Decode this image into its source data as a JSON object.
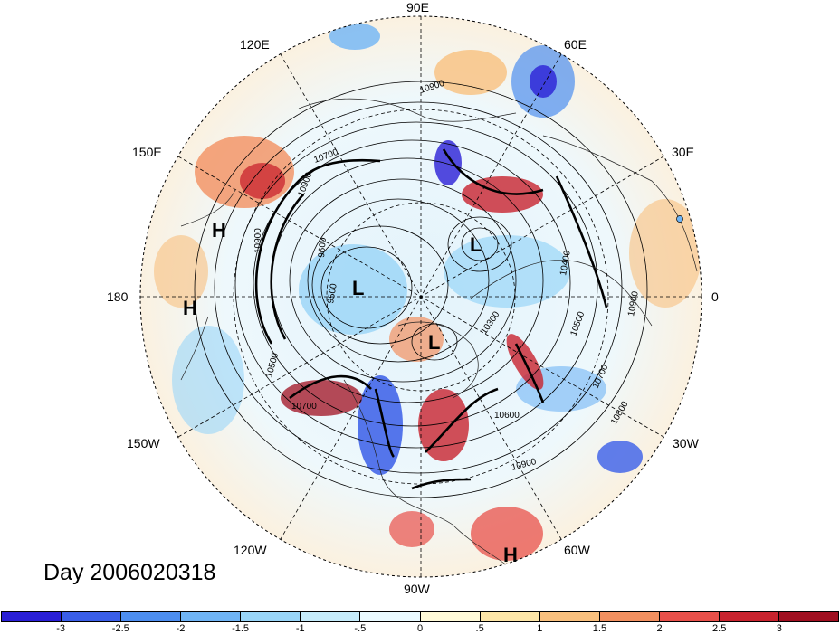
{
  "title": "Day 2006020318",
  "longitude_labels": [
    "90E",
    "60E",
    "30E",
    "0",
    "30W",
    "60W",
    "90W",
    "120W",
    "150W",
    "180",
    "150E",
    "120E"
  ],
  "pressure_centers": [
    "H",
    "H",
    "L",
    "L",
    "L",
    "H"
  ],
  "contour_labels": [
    "10900",
    "10700",
    "10900",
    "10900",
    "9600",
    "9500",
    "10500",
    "10700",
    "10300",
    "10500",
    "10400",
    "10900",
    "10700",
    "10800",
    "10600",
    "10900"
  ],
  "colorbar": {
    "ticks": [
      "-3",
      "-2.5",
      "-2",
      "-1.5",
      "-1",
      "-.5",
      "0",
      ".5",
      "1",
      "1.5",
      "2",
      "2.5",
      "3"
    ],
    "colors": [
      "#2a1fd6",
      "#3a5ee8",
      "#4d8ef0",
      "#6fb4f5",
      "#99d5f8",
      "#c6ecfb",
      "#eafaff",
      "#fffad8",
      "#fde6a8",
      "#f9c07e",
      "#f29060",
      "#e8504a",
      "#c8232e",
      "#a00f20"
    ]
  }
}
